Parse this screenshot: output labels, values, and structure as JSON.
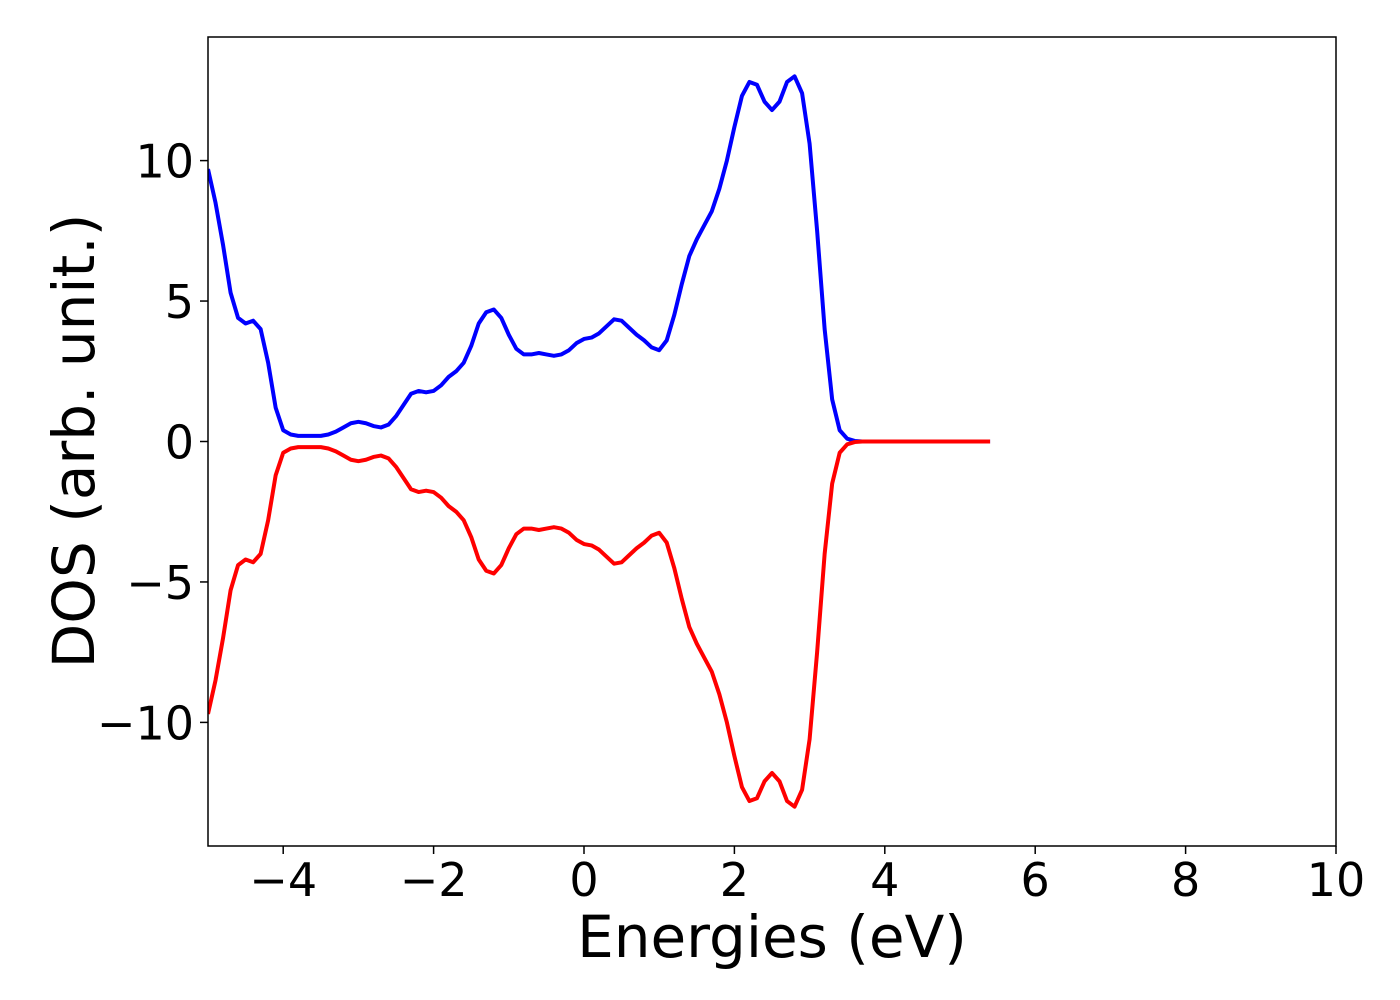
{
  "chart_data": {
    "type": "line",
    "xlabel": "Energies (eV)",
    "ylabel": "DOS (arb. unit.)",
    "x": [
      -5,
      -4.9,
      -4.8,
      -4.7,
      -4.6,
      -4.5,
      -4.4,
      -4.3,
      -4.2,
      -4.1,
      -4,
      -3.9,
      -3.8,
      -3.7,
      -3.6,
      -3.5,
      -3.4,
      -3.3,
      -3.2,
      -3.1,
      -3,
      -2.9,
      -2.8,
      -2.7,
      -2.6,
      -2.5,
      -2.4,
      -2.3,
      -2.2,
      -2.1,
      -2,
      -1.9,
      -1.8,
      -1.7,
      -1.6,
      -1.5,
      -1.4,
      -1.3,
      -1.2,
      -1.1,
      -1,
      -0.9,
      -0.8,
      -0.7,
      -0.6,
      -0.5,
      -0.4,
      -0.3,
      -0.2,
      -0.1,
      0,
      0.1,
      0.2,
      0.3,
      0.4,
      0.5,
      0.6,
      0.7,
      0.8,
      0.9,
      1,
      1.1,
      1.2,
      1.3,
      1.4,
      1.5,
      1.6,
      1.7,
      1.8,
      1.9,
      2,
      2.1,
      2.2,
      2.3,
      2.4,
      2.5,
      2.6,
      2.7,
      2.8,
      2.9,
      3,
      3.1,
      3.2,
      3.3,
      3.4,
      3.5,
      3.6,
      3.7,
      3.8,
      3.9,
      4,
      4.1,
      4.2,
      4.3,
      4.4,
      4.5,
      4.6,
      4.7,
      4.8,
      4.9,
      5,
      5.1,
      5.2,
      5.3,
      5.4
    ],
    "series": [
      {
        "color": "#0000ff",
        "values": [
          9.7,
          8.5,
          7,
          5.3,
          4.4,
          4.2,
          4.3,
          4,
          2.8,
          1.2,
          0.4,
          0.25,
          0.2,
          0.2,
          0.2,
          0.2,
          0.25,
          0.35,
          0.5,
          0.65,
          0.7,
          0.65,
          0.55,
          0.5,
          0.6,
          0.9,
          1.3,
          1.7,
          1.8,
          1.75,
          1.8,
          2,
          2.3,
          2.5,
          2.8,
          3.4,
          4.2,
          4.6,
          4.7,
          4.4,
          3.8,
          3.3,
          3.1,
          3.1,
          3.15,
          3.1,
          3.05,
          3.1,
          3.25,
          3.5,
          3.65,
          3.7,
          3.85,
          4.1,
          4.35,
          4.3,
          4.05,
          3.8,
          3.6,
          3.35,
          3.25,
          3.6,
          4.5,
          5.6,
          6.6,
          7.2,
          7.7,
          8.2,
          9,
          10,
          11.2,
          12.3,
          12.8,
          12.7,
          12.1,
          11.8,
          12.1,
          12.8,
          13,
          12.4,
          10.6,
          7.5,
          4,
          1.5,
          0.4,
          0.1,
          0.02,
          0,
          0,
          0,
          0,
          0,
          0,
          0,
          0,
          0,
          0,
          0,
          0,
          0,
          0,
          0,
          0,
          0,
          0
        ]
      },
      {
        "color": "#ff0000",
        "values": [
          -9.7,
          -8.5,
          -7,
          -5.3,
          -4.4,
          -4.2,
          -4.3,
          -4,
          -2.8,
          -1.2,
          -0.4,
          -0.25,
          -0.2,
          -0.2,
          -0.2,
          -0.2,
          -0.25,
          -0.35,
          -0.5,
          -0.65,
          -0.7,
          -0.65,
          -0.55,
          -0.5,
          -0.6,
          -0.9,
          -1.3,
          -1.7,
          -1.8,
          -1.75,
          -1.8,
          -2,
          -2.3,
          -2.5,
          -2.8,
          -3.4,
          -4.2,
          -4.6,
          -4.7,
          -4.4,
          -3.8,
          -3.3,
          -3.1,
          -3.1,
          -3.15,
          -3.1,
          -3.05,
          -3.1,
          -3.25,
          -3.5,
          -3.65,
          -3.7,
          -3.85,
          -4.1,
          -4.35,
          -4.3,
          -4.05,
          -3.8,
          -3.6,
          -3.35,
          -3.25,
          -3.6,
          -4.5,
          -5.6,
          -6.6,
          -7.2,
          -7.7,
          -8.2,
          -9,
          -10,
          -11.2,
          -12.3,
          -12.8,
          -12.7,
          -12.1,
          -11.8,
          -12.1,
          -12.8,
          -13,
          -12.4,
          -10.6,
          -7.5,
          -4,
          -1.5,
          -0.4,
          -0.1,
          -0.02,
          0,
          0,
          0,
          0,
          0,
          0,
          0,
          0,
          0,
          0,
          0,
          0,
          0,
          0,
          0,
          0,
          0,
          0
        ]
      }
    ],
    "xlim": [
      -5,
      10
    ],
    "xticks": [
      {
        "value": -4,
        "label": "−4"
      },
      {
        "value": -2,
        "label": "−2"
      },
      0,
      2,
      4,
      6,
      8,
      10
    ],
    "ylim": [
      -14.4,
      14.4
    ],
    "yticks": [
      {
        "value": -10,
        "label": "−10"
      },
      {
        "value": -5,
        "label": "−5"
      },
      0,
      5,
      10
    ]
  }
}
